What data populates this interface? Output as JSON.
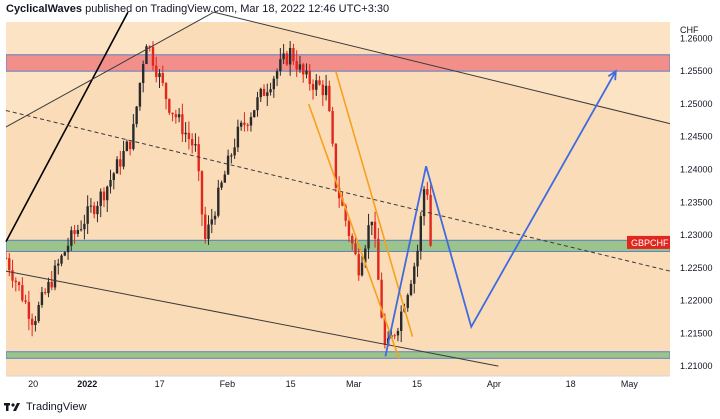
{
  "header": {
    "author": "CyclicalWaves",
    "text": "published on TradingView.com, Mar 18, 2022 12:46 UTC+3:30"
  },
  "footer": {
    "brand": "TradingView",
    "logo": "tradingview-logo-icon"
  },
  "colors": {
    "background": "#fbdcb8",
    "upper_band": "#fce3c4",
    "up_candle": "#2a2a2a",
    "down_candle": "#e0261d",
    "resistance_zone": "#f28f8b",
    "support_zone": "#9bc48a",
    "projection": "#3f6be0",
    "falling_wedge": "#f5a11e",
    "price_label": "#e0261d"
  },
  "chart_data": {
    "type": "candlestick",
    "symbol_label": "GBPCHF",
    "currency": "CHF",
    "y_ticks": [
      "1.21000",
      "1.21500",
      "1.22000",
      "1.22500",
      "1.23000",
      "1.23500",
      "1.24000",
      "1.24500",
      "1.25000",
      "1.25500",
      "1.26000"
    ],
    "x_ticks": [
      "20",
      "2022",
      "17",
      "Feb",
      "15",
      "Mar",
      "15",
      "Apr",
      "18",
      "May"
    ],
    "ylim": [
      1.2085,
      1.2625
    ],
    "time_range": [
      "2021-12-14",
      "2022-05-10"
    ],
    "candles_close_path": [
      {
        "date": "2021-12-14",
        "price": 1.2265
      },
      {
        "date": "2021-12-20",
        "price": 1.217
      },
      {
        "date": "2021-12-28",
        "price": 1.229
      },
      {
        "date": "2022-01-05",
        "price": 1.237
      },
      {
        "date": "2022-01-11",
        "price": 1.245
      },
      {
        "date": "2022-01-14",
        "price": 1.26
      },
      {
        "date": "2022-01-19",
        "price": 1.25
      },
      {
        "date": "2022-01-25",
        "price": 1.243
      },
      {
        "date": "2022-01-27",
        "price": 1.229
      },
      {
        "date": "2022-02-03",
        "price": 1.245
      },
      {
        "date": "2022-02-10",
        "price": 1.253
      },
      {
        "date": "2022-02-15",
        "price": 1.258
      },
      {
        "date": "2022-02-18",
        "price": 1.254
      },
      {
        "date": "2022-02-23",
        "price": 1.252
      },
      {
        "date": "2022-02-25",
        "price": 1.238
      },
      {
        "date": "2022-03-02",
        "price": 1.225
      },
      {
        "date": "2022-03-05",
        "price": 1.233
      },
      {
        "date": "2022-03-08",
        "price": 1.212
      },
      {
        "date": "2022-03-11",
        "price": 1.217
      },
      {
        "date": "2022-03-15",
        "price": 1.227
      },
      {
        "date": "2022-03-17",
        "price": 1.24
      },
      {
        "date": "2022-03-18",
        "price": 1.2285
      }
    ],
    "zones": [
      {
        "name": "resistance",
        "from": 1.255,
        "to": 1.2575
      },
      {
        "name": "support-upper",
        "from": 1.2275,
        "to": 1.2292
      },
      {
        "name": "support-lower",
        "from": 1.2112,
        "to": 1.2122
      }
    ],
    "projection_path": [
      {
        "date": "2022-03-08",
        "price": 1.2115
      },
      {
        "date": "2022-03-17",
        "price": 1.2405
      },
      {
        "date": "2022-03-27",
        "price": 1.216
      },
      {
        "date": "2022-04-28",
        "price": 1.255
      }
    ],
    "falling_wedge": [
      {
        "from": {
          "date": "2022-02-19",
          "price": 1.25
        },
        "to": {
          "date": "2022-03-11",
          "price": 1.2112
        }
      },
      {
        "from": {
          "date": "2022-02-25",
          "price": 1.255
        },
        "to": {
          "date": "2022-03-14",
          "price": 1.2145
        }
      }
    ],
    "trendlines": [
      {
        "from": {
          "date": "2021-12-14",
          "price": 1.229
        },
        "to": {
          "date": "2022-01-10",
          "price": 1.264
        }
      },
      {
        "from": {
          "date": "2021-12-14",
          "price": 1.2465
        },
        "to": {
          "date": "2022-01-29",
          "price": 1.264
        }
      },
      {
        "from": {
          "date": "2022-01-29",
          "price": 1.264
        },
        "to": {
          "date": "2022-05-10",
          "price": 1.247
        }
      },
      {
        "from": {
          "date": "2021-12-14",
          "price": 1.2245
        },
        "to": {
          "date": "2022-04-02",
          "price": 1.21
        }
      },
      {
        "from": {
          "date": "2021-12-14",
          "price": 1.249
        },
        "to": {
          "date": "2022-05-10",
          "price": 1.2245
        },
        "dashed": true
      }
    ]
  }
}
